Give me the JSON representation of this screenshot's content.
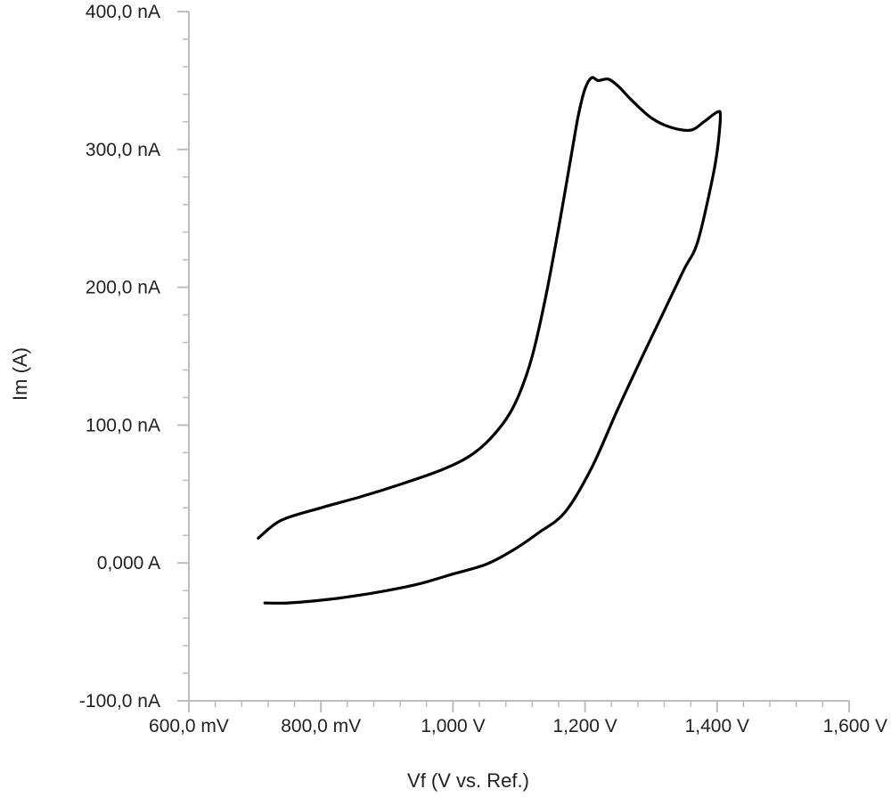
{
  "chart_data": {
    "type": "line",
    "title": "",
    "xlabel": "Vf (V vs. Ref.)",
    "ylabel": "Im (A)",
    "x_unit": "V",
    "y_unit": "nA",
    "xlim": [
      0.6,
      1.6
    ],
    "ylim": [
      -100,
      400
    ],
    "x_ticks": [
      0.6,
      0.8,
      1.0,
      1.2,
      1.4,
      1.6
    ],
    "x_tick_labels": [
      "600,0 mV",
      "800,0 mV",
      "1,000 V",
      "1,200 V",
      "1,400 V",
      "1,600 V"
    ],
    "y_ticks": [
      -100,
      0,
      100,
      200,
      300,
      400
    ],
    "y_tick_labels": [
      "-100,0 nA",
      "0,000 A",
      "100,0 nA",
      "200,0 nA",
      "300,0 nA",
      "400,0 nA"
    ],
    "grid": false,
    "legend": "none",
    "series": [
      {
        "color": "#000000",
        "x": [
          0.705,
          0.74,
          0.8,
          0.86,
          0.92,
          0.98,
          1.02,
          1.05,
          1.08,
          1.1,
          1.12,
          1.14,
          1.16,
          1.18,
          1.19,
          1.2,
          1.21,
          1.22,
          1.235,
          1.25,
          1.27,
          1.3,
          1.33,
          1.36,
          1.38,
          1.4,
          1.405,
          1.4,
          1.39,
          1.37,
          1.35,
          1.32,
          1.29,
          1.25,
          1.21,
          1.17,
          1.13,
          1.09,
          1.05,
          1.0,
          0.95,
          0.9,
          0.85,
          0.8,
          0.75,
          0.715
        ],
        "y": [
          18,
          31,
          40,
          48,
          57,
          67,
          76,
          87,
          104,
          122,
          150,
          192,
          243,
          298,
          325,
          344,
          352,
          350,
          351,
          346,
          336,
          323,
          316,
          314,
          320,
          327,
          324,
          298,
          272,
          232,
          213,
          183,
          153,
          112,
          69,
          37,
          22,
          9,
          -1,
          -8,
          -15,
          -20,
          -24,
          -27,
          -29,
          -29
        ]
      }
    ]
  }
}
